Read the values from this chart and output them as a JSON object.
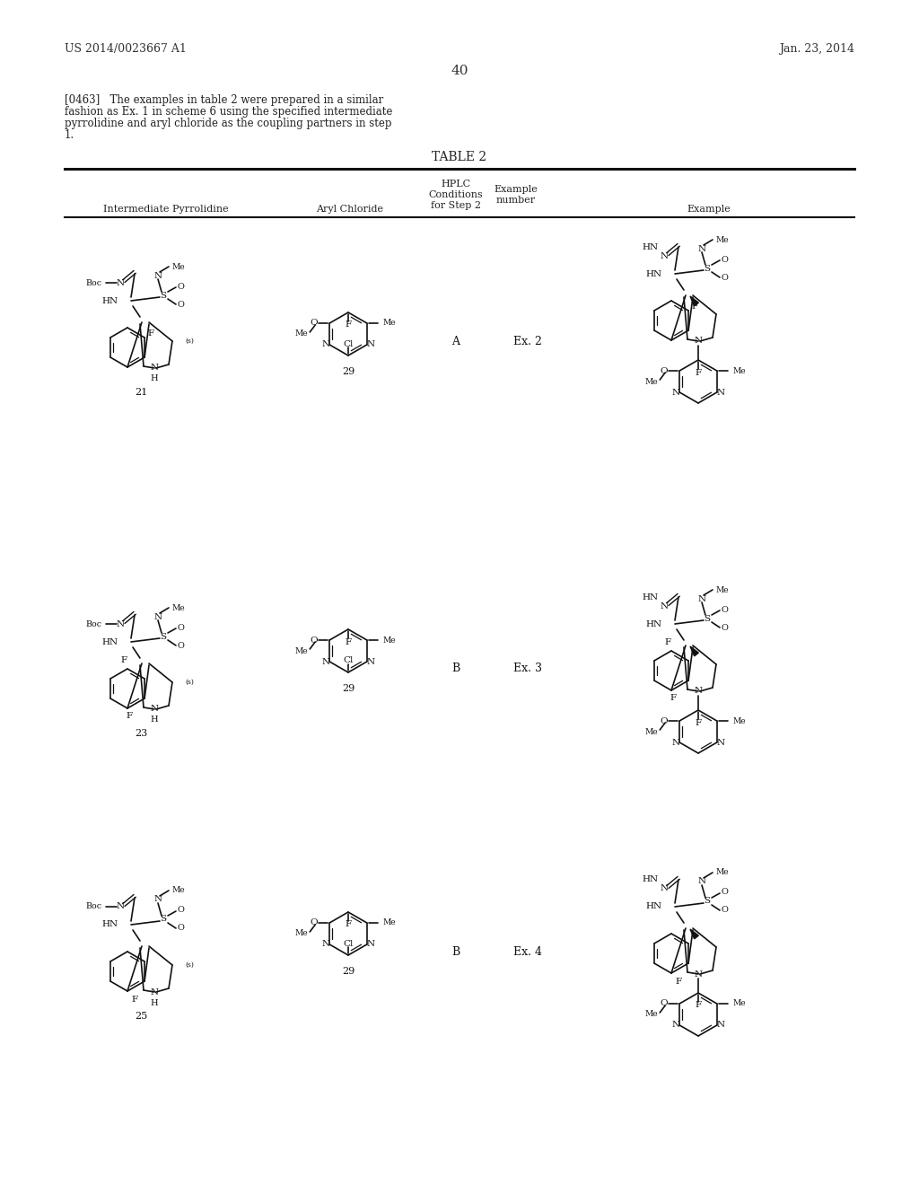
{
  "patent_number": "US 2014/0023667 A1",
  "patent_date": "Jan. 23, 2014",
  "page_number": "40",
  "background_color": "#ffffff",
  "text_color": "#111111",
  "paragraph": "[0463]   The examples in table 2 were prepared in a similar\nfashion as Ex. 1 in scheme 6 using the specified intermediate\npyrrolidine and aryl chloride as the coupling partners in step\n1.",
  "table_title": "TABLE 2",
  "col1": "Intermediate Pyrrolidine",
  "col2": "Aryl Chloride",
  "col3a": "HPLC",
  "col3b": "Conditions",
  "col3c": "for Step 2",
  "col4a": "Example",
  "col4b": "number",
  "col5": "Example",
  "rows": [
    {
      "intermediate": "21",
      "aryl": "29",
      "hplc": "A",
      "ex": "Ex. 2"
    },
    {
      "intermediate": "23",
      "aryl": "29",
      "hplc": "B",
      "ex": "Ex. 3"
    },
    {
      "intermediate": "25",
      "aryl": "29",
      "hplc": "B",
      "ex": "Ex. 4"
    }
  ]
}
